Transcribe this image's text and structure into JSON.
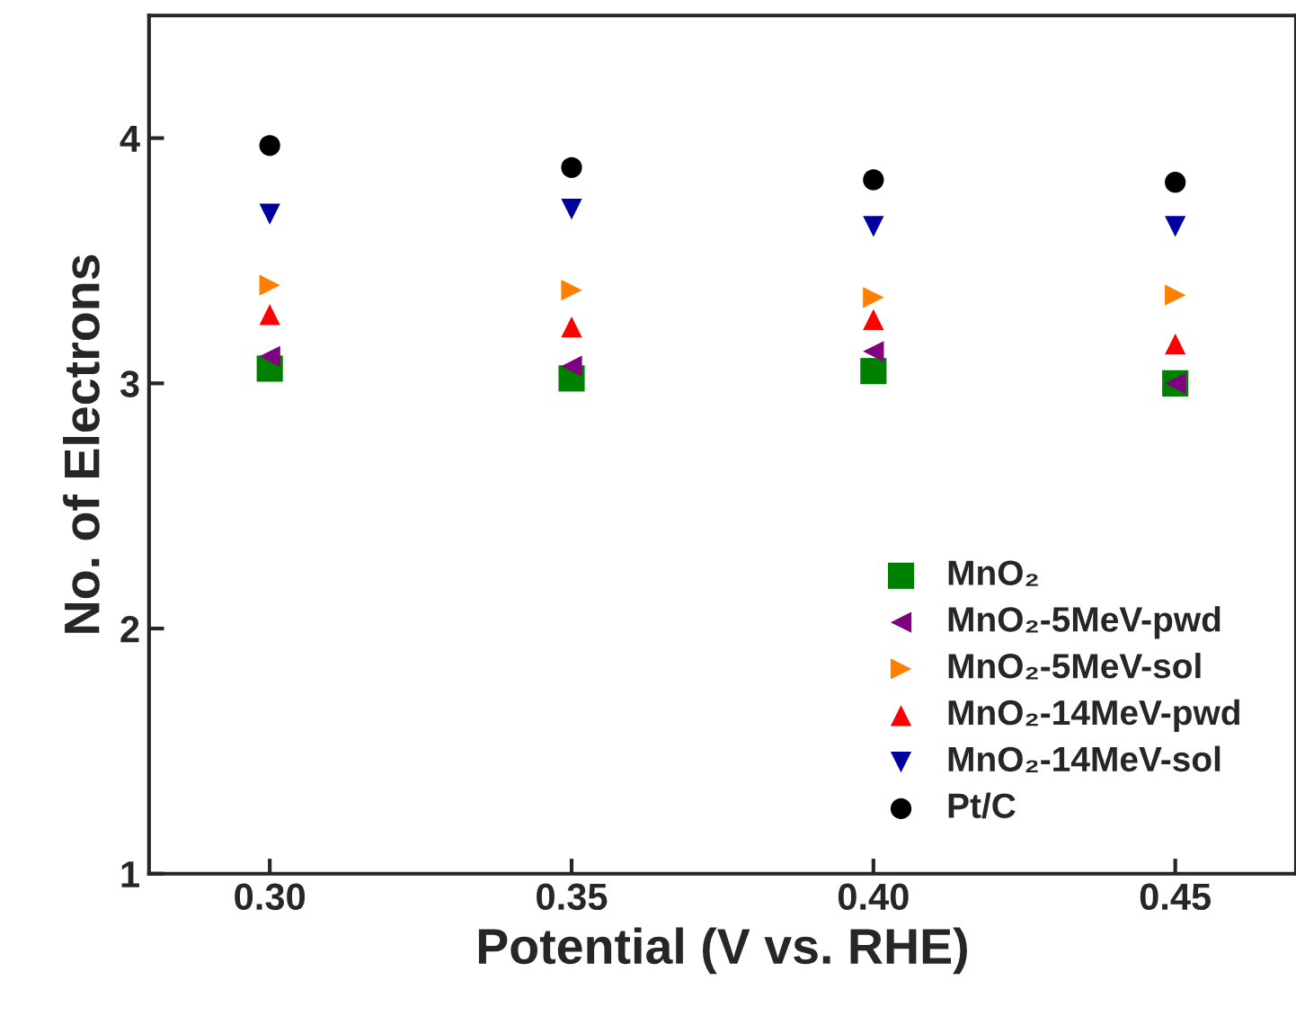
{
  "chart_data": {
    "type": "scatter",
    "xlabel": "Potential (V vs. RHE)",
    "ylabel": "No. of Electrons",
    "x": [
      0.3,
      0.35,
      0.4,
      0.45
    ],
    "xlim": [
      0.28,
      0.47
    ],
    "xticks": [
      {
        "value": 0.3,
        "label": "0.30"
      },
      {
        "value": 0.35,
        "label": "0.35"
      },
      {
        "value": 0.4,
        "label": "0.40"
      },
      {
        "value": 0.45,
        "label": "0.45"
      }
    ],
    "ylim": [
      1,
      4.5
    ],
    "yticks": [
      1,
      2,
      3,
      4
    ],
    "grid": false,
    "legend": "bottom right",
    "series": [
      {
        "name": "MnO₂",
        "color": "#008000",
        "marker": "square",
        "values": [
          3.06,
          3.02,
          3.05,
          3.0
        ]
      },
      {
        "name": "MnO₂-5MeV-pwd",
        "color": "#800080",
        "marker": "triangle_left",
        "values": [
          3.11,
          3.07,
          3.13,
          3.0
        ]
      },
      {
        "name": "MnO₂-5MeV-sol",
        "color": "#ff8000",
        "marker": "triangle_right",
        "values": [
          3.4,
          3.38,
          3.35,
          3.36
        ]
      },
      {
        "name": "MnO₂-14MeV-pwd",
        "color": "#ff0000",
        "marker": "triangle",
        "values": [
          3.28,
          3.23,
          3.26,
          3.16
        ]
      },
      {
        "name": "MnO₂-14MeV-sol",
        "color": "#0000a0",
        "marker": "triangle_down",
        "values": [
          3.69,
          3.71,
          3.64,
          3.64
        ]
      },
      {
        "name": "Pt/C",
        "color": "#000000",
        "marker": "circle",
        "values": [
          3.97,
          3.88,
          3.83,
          3.82
        ]
      }
    ]
  }
}
